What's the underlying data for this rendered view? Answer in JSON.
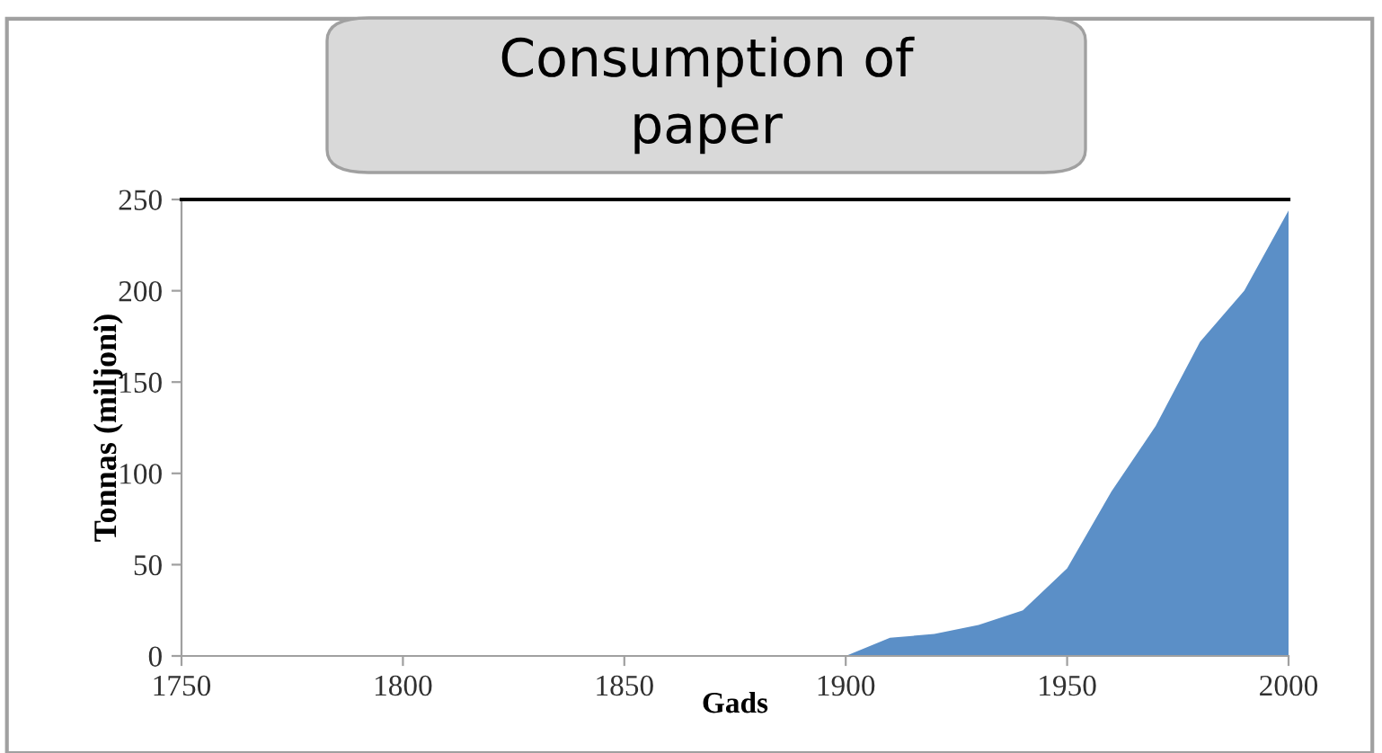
{
  "chart_data": {
    "type": "area",
    "title": "Consumption of\npaper",
    "xlabel": "Gads",
    "ylabel": "Tonnas (miljoni)",
    "x": [
      1900,
      1910,
      1920,
      1930,
      1940,
      1950,
      1960,
      1970,
      1980,
      1990,
      2000
    ],
    "series": [
      {
        "color": "#5b8fc7",
        "values": [
          0,
          10,
          12,
          17,
          25,
          48,
          90,
          126,
          172,
          200,
          244
        ]
      }
    ],
    "xlim": [
      1750,
      2000
    ],
    "xticks": [
      1750,
      1800,
      1850,
      1900,
      1950,
      2000
    ],
    "ylim": [
      0,
      250
    ],
    "yticks": [
      0,
      50,
      100,
      150,
      200,
      250
    ],
    "grid": false,
    "legend": false
  }
}
